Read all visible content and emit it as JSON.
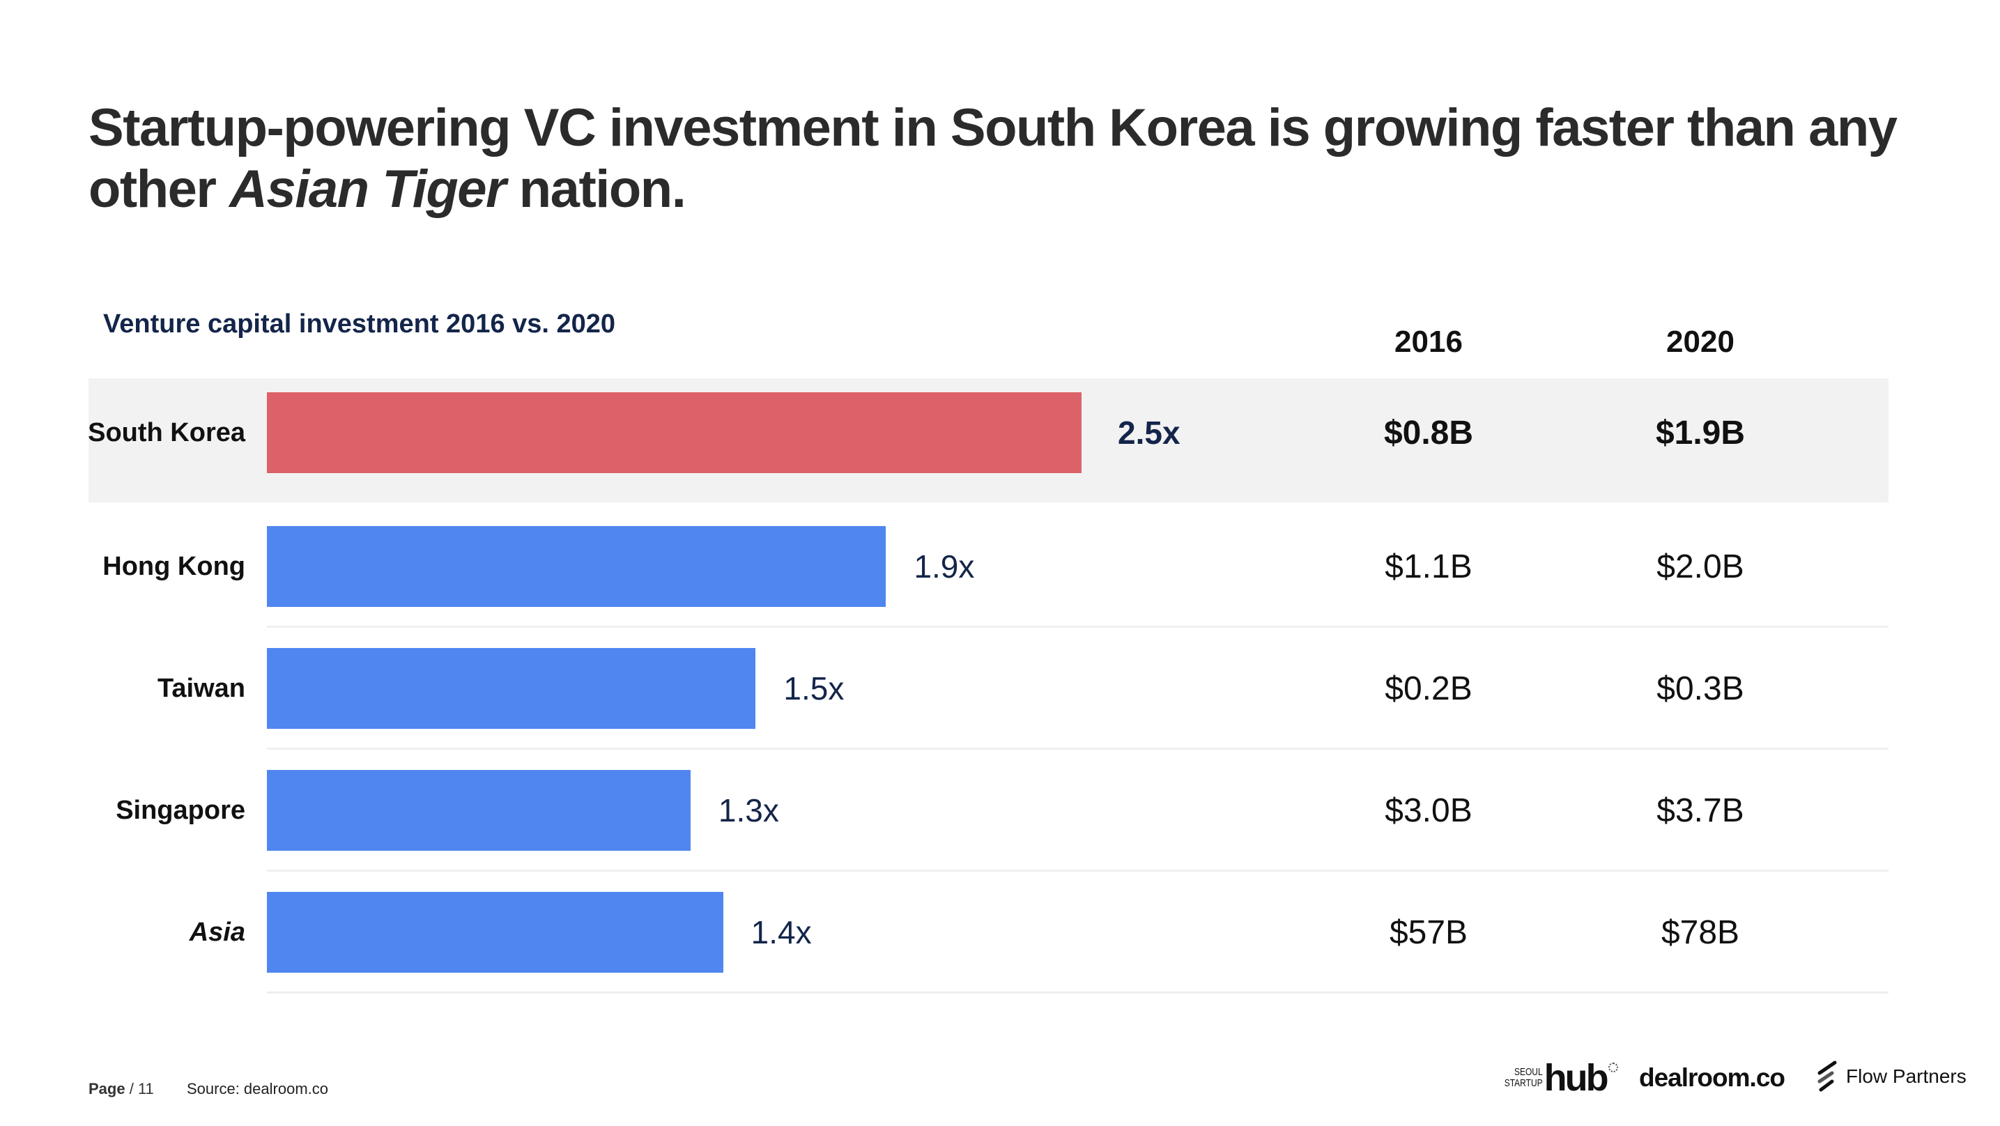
{
  "slide": {
    "title_part1": "Startup-powering VC investment in South Korea is growing faster than any other ",
    "title_emphasis": "Asian Tiger",
    "title_part2": " nation.",
    "subtitle": "Venture capital investment 2016 vs. 2020",
    "columns": [
      "2016",
      "2020"
    ]
  },
  "chart_data": {
    "type": "bar",
    "orientation": "horizontal",
    "title": "Venture capital investment 2016 vs. 2020",
    "xlabel": "",
    "ylabel": "",
    "categories": [
      "South Korea",
      "Hong Kong",
      "Taiwan",
      "Singapore",
      "Asia"
    ],
    "values": [
      2.5,
      1.9,
      1.5,
      1.3,
      1.4
    ],
    "value_labels": [
      "2.5x",
      "1.9x",
      "1.5x",
      "1.3x",
      "1.4x"
    ],
    "unit": "growth multiple (2020 vs. 2016)",
    "xlim": [
      0,
      2.5
    ],
    "grid": false,
    "highlighted_category": "South Korea",
    "colors": {
      "highlight": "#dd6168",
      "default": "#5086ef",
      "highlight_row_bg": "#f2f2f2"
    },
    "table": {
      "headers": [
        "2016",
        "2020"
      ],
      "rows": [
        {
          "category": "South Korea",
          "2016": "$0.8B",
          "2020": "$1.9B"
        },
        {
          "category": "Hong Kong",
          "2016": "$1.1B",
          "2020": "$2.0B"
        },
        {
          "category": "Taiwan",
          "2016": "$0.2B",
          "2020": "$0.3B"
        },
        {
          "category": "Singapore",
          "2016": "$3.0B",
          "2020": "$3.7B"
        },
        {
          "category": "Asia",
          "2016": "$57B",
          "2020": "$78B"
        }
      ]
    }
  },
  "footer": {
    "page_label": "Page",
    "page_number": "/ 11",
    "source": "Source: dealroom.co",
    "logos": {
      "seoul_small_1": "SEOUL",
      "seoul_small_2": "STARTUP",
      "seoul_hub": "hub",
      "dealroom": "dealroom.co",
      "flow": "Flow Partners"
    }
  }
}
